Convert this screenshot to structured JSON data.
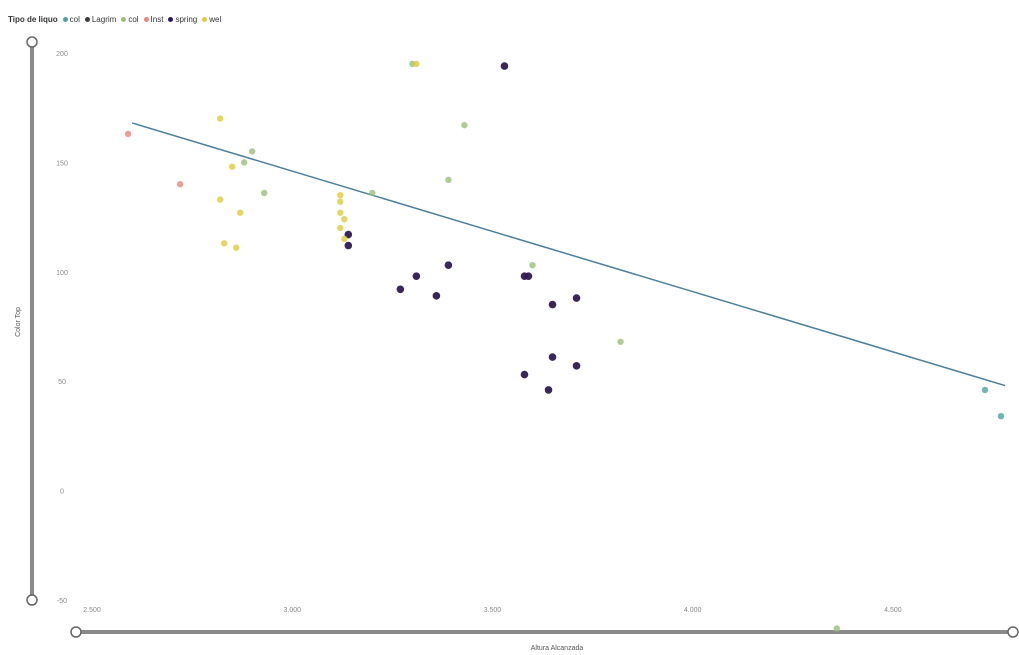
{
  "chart_data": {
    "type": "scatter",
    "title": "",
    "xlabel": "Altura Alcanzada",
    "ylabel": "Color Top",
    "x_ticks": [
      "2.500",
      "3.000",
      "3.500",
      "4.000",
      "4.500"
    ],
    "y_ticks": [
      "200",
      "150",
      "100",
      "50",
      "0",
      "-50"
    ],
    "legend": {
      "title": "Tipo de liquo",
      "position": "top-left",
      "entries": [
        {
          "name": "col",
          "color": "#4aa3a0"
        },
        {
          "name": "Lagrim",
          "color": "#3d3d3d"
        },
        {
          "name": "col",
          "color": "#9bbf7a"
        },
        {
          "name": "Inst",
          "color": "#e8867a"
        },
        {
          "name": "spring",
          "color": "#2e1a52"
        },
        {
          "name": "wel",
          "color": "#e0cc3a"
        }
      ]
    },
    "series": [
      {
        "name": "col",
        "color": "#4aa3a0",
        "points": [
          [
            4.73,
            46
          ],
          [
            4.77,
            34
          ]
        ]
      },
      {
        "name": "Inst",
        "color": "#e8867a",
        "points": [
          [
            2.59,
            163
          ],
          [
            2.72,
            140
          ]
        ]
      },
      {
        "name": "col",
        "color": "#9bbf7a",
        "points": [
          [
            2.88,
            150
          ],
          [
            2.9,
            155
          ],
          [
            2.93,
            136
          ],
          [
            3.2,
            136
          ],
          [
            3.3,
            195
          ],
          [
            3.39,
            142
          ],
          [
            3.43,
            167
          ],
          [
            3.6,
            103
          ],
          [
            3.82,
            68
          ],
          [
            4.36,
            -63
          ]
        ]
      },
      {
        "name": "spring",
        "color": "#2e1a52",
        "points": [
          [
            3.53,
            194
          ],
          [
            3.14,
            117
          ],
          [
            3.14,
            112
          ],
          [
            3.27,
            92
          ],
          [
            3.31,
            98
          ],
          [
            3.36,
            89
          ],
          [
            3.39,
            103
          ],
          [
            3.58,
            98
          ],
          [
            3.59,
            98
          ],
          [
            3.65,
            85
          ],
          [
            3.71,
            88
          ],
          [
            3.65,
            61
          ],
          [
            3.58,
            53
          ],
          [
            3.64,
            46
          ],
          [
            3.71,
            57
          ]
        ]
      },
      {
        "name": "wel",
        "color": "#e0cc3a",
        "points": [
          [
            2.82,
            170
          ],
          [
            2.85,
            148
          ],
          [
            2.82,
            133
          ],
          [
            2.83,
            113
          ],
          [
            2.87,
            127
          ],
          [
            2.86,
            111
          ],
          [
            3.12,
            135
          ],
          [
            3.12,
            132
          ],
          [
            3.12,
            127
          ],
          [
            3.13,
            124
          ],
          [
            3.12,
            120
          ],
          [
            3.13,
            115
          ],
          [
            3.31,
            195
          ]
        ]
      }
    ],
    "trendline": {
      "color": "#4a7f9c",
      "points": [
        [
          2.6,
          168
        ],
        [
          4.78,
          48
        ]
      ]
    },
    "xlim": [
      2.4,
      4.8
    ],
    "ylim": [
      -50,
      205
    ],
    "grid": false
  }
}
